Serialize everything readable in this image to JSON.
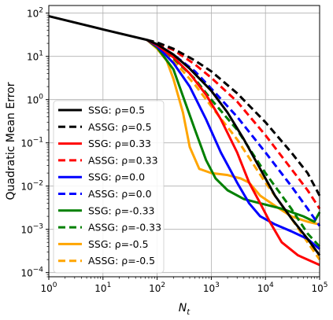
{
  "chart_data": {
    "type": "line",
    "xscale": "log",
    "yscale": "log",
    "xlim": [
      1,
      100000
    ],
    "ylim": [
      8e-05,
      150
    ],
    "xlabel": "N",
    "xlabel_sub": "t",
    "ylabel": "Quadratic Mean Error",
    "grid": true,
    "legend_position": "center-left",
    "x_ticks": [
      {
        "value": 1,
        "base": "10",
        "exp": "0"
      },
      {
        "value": 10,
        "base": "10",
        "exp": "1"
      },
      {
        "value": 100,
        "base": "10",
        "exp": "2"
      },
      {
        "value": 1000,
        "base": "10",
        "exp": "3"
      },
      {
        "value": 10000,
        "base": "10",
        "exp": "4"
      },
      {
        "value": 100000,
        "base": "10",
        "exp": "5"
      }
    ],
    "y_ticks": [
      {
        "value": 0.0001,
        "base": "10",
        "exp": "−4"
      },
      {
        "value": 0.001,
        "base": "10",
        "exp": "−3"
      },
      {
        "value": 0.01,
        "base": "10",
        "exp": "−2"
      },
      {
        "value": 0.1,
        "base": "10",
        "exp": "−1"
      },
      {
        "value": 1,
        "base": "10",
        "exp": "0"
      },
      {
        "value": 10,
        "base": "10",
        "exp": "1"
      },
      {
        "value": 100,
        "base": "10",
        "exp": "2"
      }
    ],
    "series": [
      {
        "name": "SSG: ρ=0.5",
        "color": "#000000",
        "dash": false,
        "points": [
          [
            1,
            85
          ],
          [
            10,
            42
          ],
          [
            65,
            24
          ],
          [
            100,
            19
          ],
          [
            200,
            11
          ],
          [
            400,
            5.2
          ],
          [
            1000,
            1.6
          ],
          [
            2000,
            0.5
          ],
          [
            4000,
            0.12
          ],
          [
            8000,
            0.025
          ],
          [
            15000,
            0.006
          ],
          [
            30000,
            0.0018
          ],
          [
            60000,
            0.0006
          ],
          [
            100000,
            0.00025
          ]
        ]
      },
      {
        "name": "ASSG: ρ=0.5",
        "color": "#000000",
        "dash": true,
        "points": [
          [
            65,
            24
          ],
          [
            100,
            21
          ],
          [
            200,
            15
          ],
          [
            500,
            8
          ],
          [
            1000,
            4.5
          ],
          [
            3000,
            1.4
          ],
          [
            10000,
            0.3
          ],
          [
            30000,
            0.06
          ],
          [
            60000,
            0.02
          ],
          [
            100000,
            0.006
          ]
        ]
      },
      {
        "name": "SSG: ρ=0.33",
        "color": "#ff0000",
        "dash": false,
        "points": [
          [
            65,
            24
          ],
          [
            100,
            18
          ],
          [
            200,
            9.5
          ],
          [
            400,
            4
          ],
          [
            800,
            1.3
          ],
          [
            1500,
            0.35
          ],
          [
            3000,
            0.06
          ],
          [
            5000,
            0.012
          ],
          [
            8000,
            0.004
          ],
          [
            12000,
            0.0015
          ],
          [
            20000,
            0.0005
          ],
          [
            40000,
            0.00025
          ],
          [
            100000,
            0.00015
          ]
        ]
      },
      {
        "name": "ASSG: ρ=0.33",
        "color": "#ff0000",
        "dash": true,
        "points": [
          [
            65,
            24
          ],
          [
            100,
            20
          ],
          [
            200,
            14
          ],
          [
            500,
            6.5
          ],
          [
            1000,
            3.2
          ],
          [
            3000,
            0.9
          ],
          [
            10000,
            0.15
          ],
          [
            30000,
            0.025
          ],
          [
            60000,
            0.008
          ],
          [
            100000,
            0.003
          ]
        ]
      },
      {
        "name": "SSG: ρ=0.0",
        "color": "#0000ff",
        "dash": false,
        "points": [
          [
            65,
            24
          ],
          [
            100,
            17
          ],
          [
            200,
            7
          ],
          [
            400,
            2
          ],
          [
            800,
            0.35
          ],
          [
            1500,
            0.06
          ],
          [
            3000,
            0.012
          ],
          [
            5000,
            0.004
          ],
          [
            8000,
            0.002
          ],
          [
            15000,
            0.0013
          ],
          [
            30000,
            0.0009
          ],
          [
            60000,
            0.0006
          ],
          [
            100000,
            0.00035
          ]
        ]
      },
      {
        "name": "ASSG: ρ=0.0",
        "color": "#0000ff",
        "dash": true,
        "points": [
          [
            65,
            24
          ],
          [
            100,
            19
          ],
          [
            200,
            11
          ],
          [
            500,
            4.5
          ],
          [
            1000,
            1.8
          ],
          [
            3000,
            0.4
          ],
          [
            10000,
            0.06
          ],
          [
            30000,
            0.01
          ],
          [
            60000,
            0.003
          ],
          [
            100000,
            0.0012
          ]
        ]
      },
      {
        "name": "SSG: ρ=-0.33",
        "color": "#008000",
        "dash": false,
        "points": [
          [
            65,
            24
          ],
          [
            100,
            16
          ],
          [
            200,
            5
          ],
          [
            300,
            1.2
          ],
          [
            500,
            0.2
          ],
          [
            800,
            0.04
          ],
          [
            1200,
            0.015
          ],
          [
            2000,
            0.008
          ],
          [
            4000,
            0.005
          ],
          [
            8000,
            0.004
          ],
          [
            20000,
            0.003
          ],
          [
            50000,
            0.002
          ],
          [
            80000,
            0.0015
          ],
          [
            100000,
            0.0025
          ]
        ]
      },
      {
        "name": "ASSG: ρ=-0.33",
        "color": "#008000",
        "dash": true,
        "points": [
          [
            65,
            24
          ],
          [
            100,
            19
          ],
          [
            200,
            9
          ],
          [
            500,
            3
          ],
          [
            1000,
            1
          ],
          [
            3000,
            0.2
          ],
          [
            10000,
            0.02
          ],
          [
            30000,
            0.003
          ],
          [
            60000,
            0.0008
          ],
          [
            100000,
            0.0004
          ]
        ]
      },
      {
        "name": "SSG: ρ=-0.5",
        "color": "#ffa500",
        "dash": false,
        "points": [
          [
            65,
            24
          ],
          [
            100,
            15
          ],
          [
            150,
            8
          ],
          [
            200,
            3
          ],
          [
            300,
            0.5
          ],
          [
            400,
            0.08
          ],
          [
            600,
            0.025
          ],
          [
            1000,
            0.02
          ],
          [
            2000,
            0.018
          ],
          [
            3500,
            0.015
          ],
          [
            5000,
            0.012
          ],
          [
            8000,
            0.006
          ],
          [
            15000,
            0.0035
          ],
          [
            30000,
            0.002
          ],
          [
            60000,
            0.0015
          ],
          [
            100000,
            0.0013
          ]
        ]
      },
      {
        "name": "ASSG: ρ=-0.5",
        "color": "#ffa500",
        "dash": true,
        "points": [
          [
            65,
            24
          ],
          [
            100,
            18
          ],
          [
            200,
            8
          ],
          [
            500,
            2.2
          ],
          [
            1000,
            0.7
          ],
          [
            3000,
            0.12
          ],
          [
            10000,
            0.012
          ],
          [
            30000,
            0.0018
          ],
          [
            60000,
            0.0005
          ],
          [
            100000,
            0.0002
          ]
        ]
      }
    ]
  }
}
